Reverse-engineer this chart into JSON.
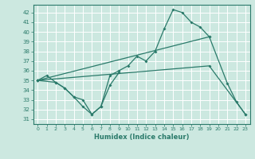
{
  "xlabel": "Humidex (Indice chaleur)",
  "bg_color": "#cce8e0",
  "grid_color": "#ffffff",
  "line_color": "#2a7a6a",
  "xlim": [
    -0.5,
    23.5
  ],
  "ylim": [
    30.5,
    42.8
  ],
  "yticks": [
    31,
    32,
    33,
    34,
    35,
    36,
    37,
    38,
    39,
    40,
    41,
    42
  ],
  "xticks": [
    0,
    1,
    2,
    3,
    4,
    5,
    6,
    7,
    8,
    9,
    10,
    11,
    12,
    13,
    14,
    15,
    16,
    17,
    18,
    19,
    20,
    21,
    22,
    23
  ],
  "series": [
    {
      "x": [
        0,
        2,
        3,
        4,
        5,
        6,
        7,
        8,
        9,
        10,
        11,
        12,
        13,
        14,
        15,
        16,
        17,
        18,
        19
      ],
      "y": [
        35.0,
        34.8,
        34.2,
        33.3,
        32.3,
        31.5,
        32.3,
        35.5,
        36.0,
        36.5,
        37.5,
        37.0,
        38.0,
        40.3,
        42.3,
        42.0,
        41.0,
        40.5,
        39.5
      ]
    },
    {
      "x": [
        0,
        1,
        2,
        3,
        4,
        5,
        6,
        7,
        8,
        9
      ],
      "y": [
        35.0,
        35.5,
        34.8,
        34.2,
        33.3,
        33.0,
        31.5,
        32.3,
        34.5,
        35.8
      ]
    },
    {
      "x": [
        0,
        19,
        21,
        22,
        23
      ],
      "y": [
        35.0,
        39.5,
        34.7,
        32.8,
        31.5
      ]
    },
    {
      "x": [
        0,
        19,
        23
      ],
      "y": [
        35.0,
        36.5,
        31.5
      ]
    }
  ]
}
